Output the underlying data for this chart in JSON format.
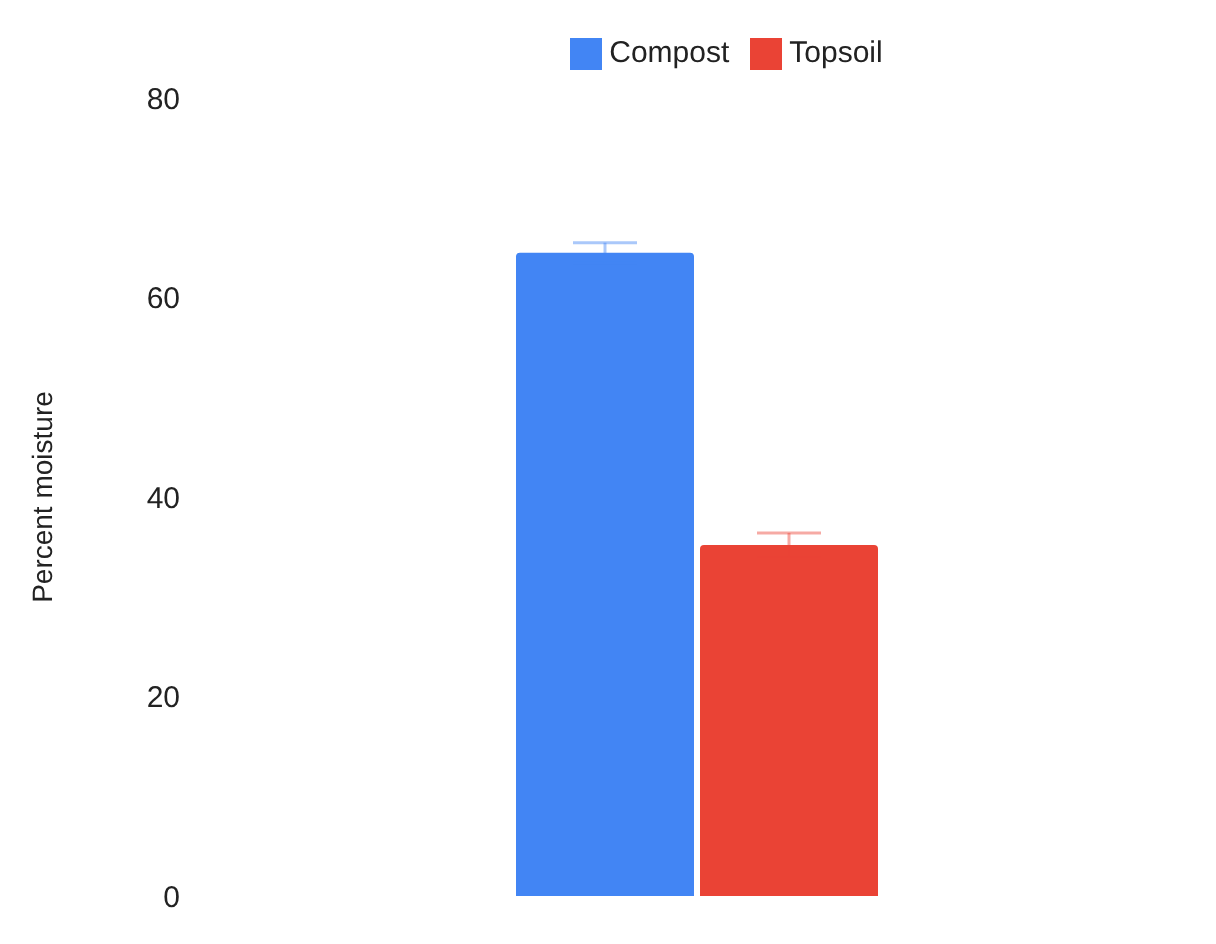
{
  "chart_data": {
    "type": "bar",
    "ylabel": "Percent moisture",
    "categories": [
      null
    ],
    "series": [
      {
        "name": "Compost",
        "color": "#4285f4",
        "values": [
          64.5
        ],
        "errors": [
          1
        ]
      },
      {
        "name": "Topsoil",
        "color": "#ea4335",
        "values": [
          35.2
        ],
        "errors": [
          1.2
        ]
      }
    ],
    "ylim": [
      0,
      80
    ],
    "yticks": [
      0,
      20,
      40,
      60,
      80
    ],
    "grid": false,
    "legend": "top"
  }
}
